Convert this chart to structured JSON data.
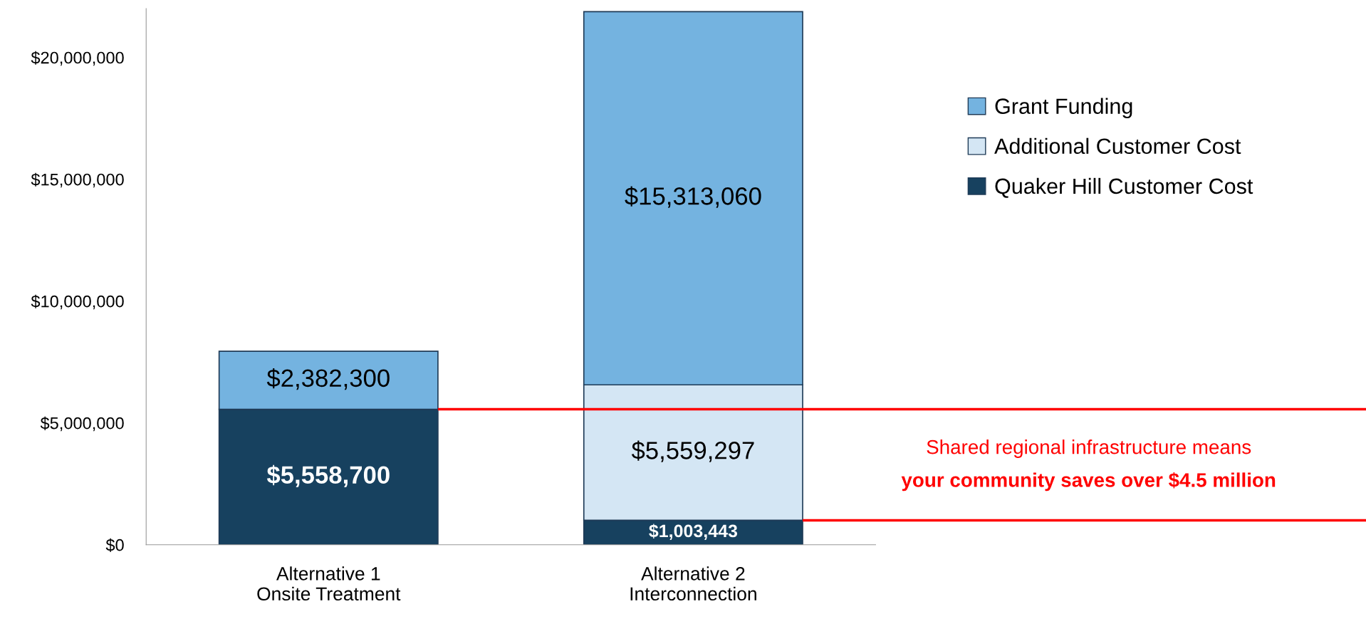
{
  "chart_data": {
    "type": "bar",
    "stacked": true,
    "categories": [
      "Alternative 1\nOnsite Treatment",
      "Alternative 2\nInterconnection"
    ],
    "series": [
      {
        "name": "Quaker Hill Customer Cost",
        "color": "#17415f",
        "values": [
          5558700,
          1003443
        ],
        "value_labels": [
          "$5,558,700",
          "$1,003,443"
        ]
      },
      {
        "name": "Additional Customer Cost",
        "color": "#d4e6f4",
        "values": [
          null,
          5559297
        ],
        "value_labels": [
          null,
          "$5,559,297"
        ]
      },
      {
        "name": "Grant Funding",
        "color": "#74b3e0",
        "values": [
          2382300,
          15313060
        ],
        "value_labels": [
          "$2,382,300",
          "$15,313,060"
        ]
      }
    ],
    "ylim": [
      0,
      22000000
    ],
    "yticks": [
      {
        "value": 0,
        "label": "$0"
      },
      {
        "value": 5000000,
        "label": "$5,000,000"
      },
      {
        "value": 10000000,
        "label": "$10,000,000"
      },
      {
        "value": 15000000,
        "label": "$15,000,000"
      },
      {
        "value": 20000000,
        "label": "$20,000,000"
      }
    ],
    "grid": false,
    "legend": "right",
    "ref_lines": [
      {
        "axis": "y",
        "value": 5558700,
        "color": "#ff0000"
      },
      {
        "axis": "y",
        "value": 1003443,
        "color": "#ff0000"
      }
    ],
    "annotations": [
      "Shared regional infrastructure means",
      "your community saves over $4.5 million"
    ]
  }
}
